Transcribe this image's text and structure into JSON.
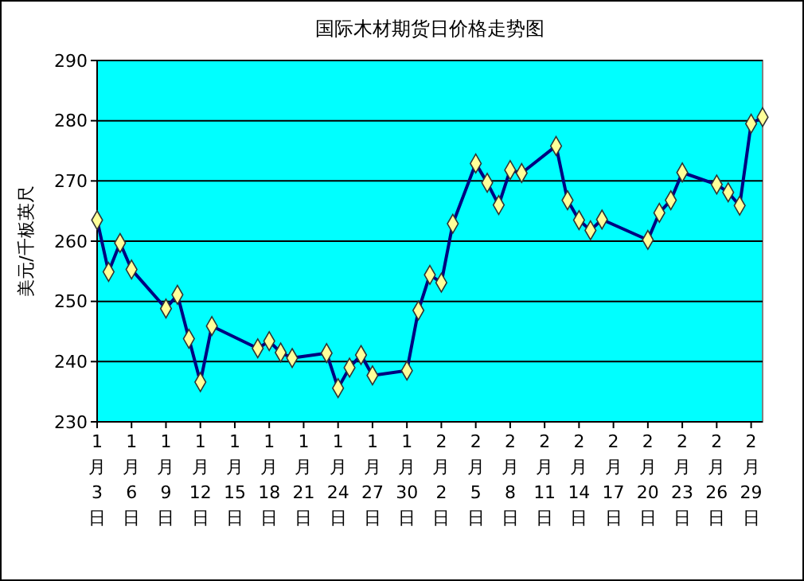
{
  "chart_data": {
    "type": "line",
    "title": "国际木材期货日价格走势图",
    "ylabel": "美元/千板英尺",
    "x": [
      "--01-03",
      "--01-04",
      "--01-05",
      "--01-06",
      "--01-09",
      "--01-10",
      "--01-11",
      "--01-12",
      "--01-13",
      "--01-17",
      "--01-18",
      "--01-19",
      "--01-20",
      "--01-23",
      "--01-24",
      "--01-25",
      "--01-26",
      "--01-27",
      "--01-30",
      "--01-31",
      "--02-01",
      "--02-02",
      "--02-03",
      "--02-05",
      "--02-06",
      "--02-07",
      "--02-08",
      "--02-09",
      "--02-12",
      "--02-13",
      "--02-14",
      "--02-15",
      "--02-16",
      "--02-20",
      "--02-21",
      "--02-22",
      "--02-23",
      "--02-26",
      "--02-27",
      "--02-28",
      "--02-29",
      "--03-01"
    ],
    "series": [
      {
        "color": "#000080",
        "values": [
          263.5,
          254.9,
          259.7,
          255.3,
          248.8,
          251.1,
          243.8,
          236.6,
          245.9,
          242.2,
          243.4,
          241.5,
          240.6,
          241.4,
          235.6,
          239.0,
          241.1,
          237.7,
          238.5,
          248.5,
          254.4,
          253.1,
          262.9,
          272.9,
          269.7,
          266.0,
          271.8,
          271.3,
          275.8,
          266.8,
          263.5,
          261.8,
          263.6,
          260.2,
          264.7,
          266.8,
          271.4,
          269.4,
          268.1,
          265.9,
          279.5,
          280.6
        ]
      }
    ],
    "marker": "diamond",
    "line_style": "solid",
    "grid": "y",
    "xlim": [
      "--01-03",
      "--03-01"
    ],
    "xticks": [
      {
        "value": "--01-03",
        "label": "1月3日"
      },
      {
        "value": "--01-06",
        "label": "1月6日"
      },
      {
        "value": "--01-09",
        "label": "1月9日"
      },
      {
        "value": "--01-12",
        "label": "1月12日"
      },
      {
        "value": "--01-15",
        "label": "1月15日"
      },
      {
        "value": "--01-18",
        "label": "1月18日"
      },
      {
        "value": "--01-21",
        "label": "1月21日"
      },
      {
        "value": "--01-24",
        "label": "1月24日"
      },
      {
        "value": "--01-27",
        "label": "1月27日"
      },
      {
        "value": "--01-30",
        "label": "1月30日"
      },
      {
        "value": "--02-02",
        "label": "2月2日"
      },
      {
        "value": "--02-05",
        "label": "2月5日"
      },
      {
        "value": "--02-08",
        "label": "2月8日"
      },
      {
        "value": "--02-11",
        "label": "2月11日"
      },
      {
        "value": "--02-14",
        "label": "2月14日"
      },
      {
        "value": "--02-17",
        "label": "2月17日"
      },
      {
        "value": "--02-20",
        "label": "2月20日"
      },
      {
        "value": "--02-23",
        "label": "2月23日"
      },
      {
        "value": "--02-26",
        "label": "2月26日"
      },
      {
        "value": "--02-29",
        "label": "2月29日"
      }
    ],
    "ylim": [
      230,
      290
    ],
    "yticks": [
      230,
      240,
      250,
      260,
      270,
      280,
      290
    ]
  }
}
